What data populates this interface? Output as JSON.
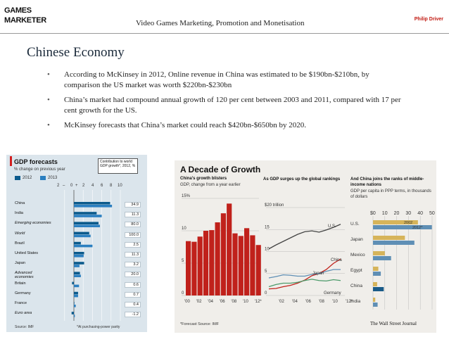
{
  "header": {
    "brand_line1": "GAMES",
    "brand_line2": "MARKETER",
    "title": "Video Games Marketing, Promotion and Monetisation",
    "author": "Philip Driver"
  },
  "slide": {
    "title": "Chinese Economy",
    "bullets": [
      "According to McKinsey in 2012, Online revenue in China was estimated to be $190bn-$210bn, by comparison the US market was worth $220bn-$230bn",
      "China’s market had compound annual growth of 120 per cent between 2003 and 2011, compared with 17 per cent growth for the US.",
      "McKinsey forecasts that China’s market could reach $420bn-$650bn by 2020."
    ],
    "bullet_glyph": "•"
  },
  "colors": {
    "econ_2012": "#0b5a8c",
    "econ_2013": "#2b7fc0",
    "wsj_red": "#c0211b",
    "wsj_tan": "#d6b45a",
    "wsj_blue": "#5f8fb5",
    "wsj_dark": "#1a5b88"
  },
  "chart_data": [
    {
      "type": "bar",
      "title": "GDP forecasts",
      "subtitle": "% change on previous year",
      "callout": "Contribution to world GDP growth*, 2012, %",
      "legend": [
        "2012",
        "2013"
      ],
      "axis_labels": [
        "2",
        "–",
        "0",
        "+",
        "2",
        "4",
        "6",
        "8",
        "10"
      ],
      "xlim": [
        -2,
        10
      ],
      "categories": [
        "China",
        "India",
        "Emerging economies",
        "World",
        "Brazil",
        "United States",
        "Japan",
        "Advanced economies",
        "Britain",
        "Germany",
        "France",
        "Euro area"
      ],
      "italic_categories": [
        "Emerging economies",
        "World",
        "Advanced economies",
        "Euro area"
      ],
      "series": [
        {
          "name": "2012",
          "values": [
            7.8,
            4.9,
            5.3,
            3.3,
            1.5,
            2.2,
            2.2,
            1.3,
            -0.4,
            0.9,
            0.1,
            -0.5
          ]
        },
        {
          "name": "2013",
          "values": [
            8.2,
            6.0,
            5.6,
            3.6,
            4.0,
            2.1,
            1.2,
            1.5,
            1.1,
            0.9,
            0.4,
            0.2
          ]
        }
      ],
      "contribution_labels": [
        "34.9",
        "11.3",
        "80.0",
        "100.0",
        "2.5",
        "11.3",
        "3.2",
        "20.0",
        "0.6",
        "0.7",
        "0.4",
        "-1.2"
      ],
      "source": "Source: IMF",
      "footnote": "*At purchasing-power parity"
    },
    {
      "type": "bar",
      "title": "China's growth blisters",
      "subtitle": "GDP, change from a year earlier",
      "categories": [
        "'00",
        "'01",
        "'02",
        "'03",
        "'04",
        "'05",
        "'06",
        "'07",
        "'08",
        "'09",
        "'10",
        "'11",
        "'12"
      ],
      "tick_labels": [
        "'00",
        "'02",
        "'04",
        "'06",
        "'08",
        "'10",
        "'12*"
      ],
      "values": [
        8.4,
        8.3,
        9.1,
        10.0,
        10.1,
        11.3,
        12.7,
        14.2,
        9.6,
        9.2,
        10.4,
        9.3,
        7.8
      ],
      "y_ticks": [
        "15%",
        "10",
        "5",
        "0"
      ],
      "ylim": [
        0,
        15
      ]
    },
    {
      "type": "line",
      "title": "As GDP surges up the global rankings",
      "x_ticks": [
        "'02",
        "'04",
        "'06",
        "'08",
        "'10",
        "'12*"
      ],
      "y_ticks": [
        "$20 trillion",
        "15",
        "10",
        "5",
        "0"
      ],
      "ylim": [
        0,
        20
      ],
      "series": [
        {
          "name": "U.S.",
          "values": [
            10.6,
            11.5,
            12.3,
            13.1,
            13.9,
            14.5,
            14.7,
            14.4,
            14.9,
            15.5,
            16.2
          ]
        },
        {
          "name": "China",
          "values": [
            1.5,
            1.6,
            2.0,
            2.3,
            2.8,
            3.5,
            4.5,
            5.0,
            5.9,
            7.3,
            8.3
          ]
        },
        {
          "name": "Japan",
          "values": [
            4.0,
            4.3,
            4.7,
            4.6,
            4.4,
            4.4,
            4.8,
            5.0,
            5.5,
            5.9,
            5.9
          ]
        },
        {
          "name": "Germany",
          "values": [
            2.0,
            2.5,
            2.8,
            2.8,
            3.0,
            3.4,
            3.7,
            3.4,
            3.3,
            3.6,
            3.4
          ]
        }
      ]
    },
    {
      "type": "bar",
      "title": "And China joins the ranks of middle-income nations",
      "subtitle": "GDP per capita in PPP terms, in thousands of dollars",
      "x_ticks": [
        "$0",
        "10",
        "20",
        "30",
        "40",
        "50"
      ],
      "xlim": [
        0,
        50
      ],
      "categories": [
        "U.S.",
        "Japan",
        "Mexico",
        "Egypt",
        "China",
        "India"
      ],
      "series": [
        {
          "name": "2002",
          "values": [
            38,
            27,
            10,
            4.5,
            3.5,
            1.9
          ]
        },
        {
          "name": "2012*",
          "values": [
            49.8,
            35,
            15.3,
            6.6,
            9.1,
            3.9
          ]
        }
      ],
      "series_labels": [
        "2002",
        "2012*"
      ],
      "footnote": "*Forecast  Source: IMF",
      "publisher": "The Wall Street Journal"
    }
  ],
  "wsj": {
    "title": "A Decade of Growth"
  }
}
